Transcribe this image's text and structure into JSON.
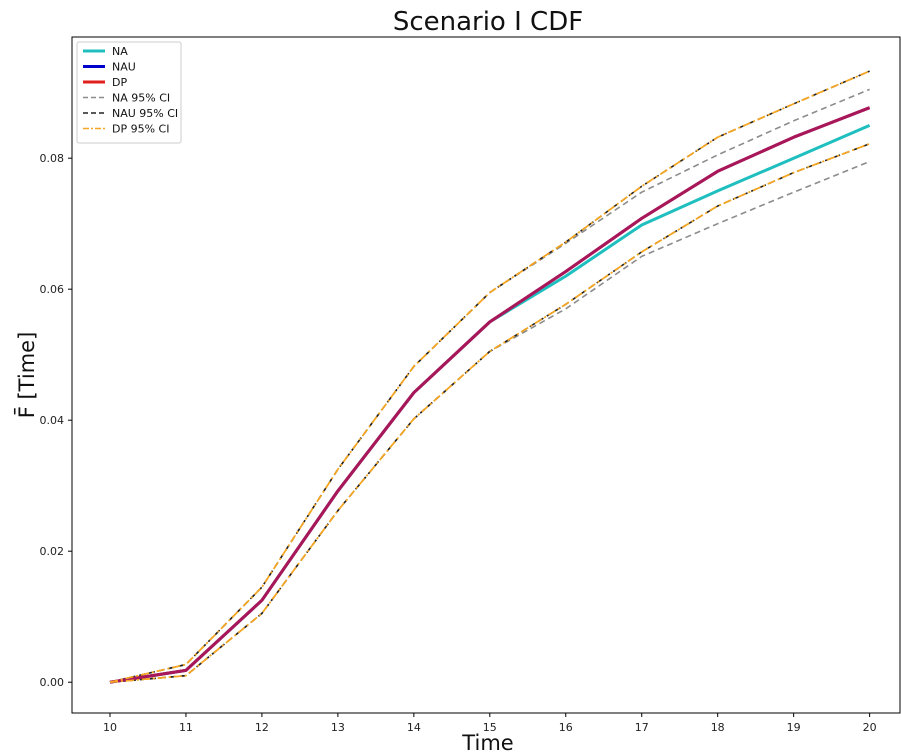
{
  "chart_data": {
    "type": "line",
    "title": "Scenario I CDF",
    "xlabel": "Time",
    "ylabel": "F̄ [Time]",
    "x": [
      10,
      11,
      12,
      13,
      14,
      15,
      16,
      17,
      18,
      19,
      20
    ],
    "xlim": [
      9.5,
      20.4
    ],
    "ylim": [
      -0.0047,
      0.0985
    ],
    "xticks": [
      10,
      11,
      12,
      13,
      14,
      15,
      16,
      17,
      18,
      19,
      20
    ],
    "yticks": [
      0.0,
      0.02,
      0.04,
      0.06,
      0.08
    ],
    "ytick_labels": [
      "0.00",
      "0.02",
      "0.04",
      "0.06",
      "0.08"
    ],
    "grid": false,
    "legend_position": "top-left",
    "series": [
      {
        "name": "NA",
        "color": "#1fbfbf",
        "style": "solid",
        "values": [
          0.0,
          0.0018,
          0.0125,
          0.0292,
          0.0442,
          0.055,
          0.062,
          0.0698,
          0.075,
          0.08,
          0.085
        ]
      },
      {
        "name": "NAU",
        "color": "#0000cc",
        "style": "solid",
        "values": [
          0.0,
          0.0018,
          0.0125,
          0.0292,
          0.0442,
          0.055,
          0.0627,
          0.0708,
          0.078,
          0.0832,
          0.0877
        ]
      },
      {
        "name": "DP",
        "color": "#e0201c",
        "style": "solid",
        "values": [
          0.0,
          0.0018,
          0.0125,
          0.0292,
          0.0442,
          0.055,
          0.0627,
          0.0708,
          0.078,
          0.0832,
          0.0877
        ]
      },
      {
        "name": "NA 95% CI",
        "color": "#8c8c8c",
        "style": "dashed",
        "values": [
          0.0,
          0.001,
          0.0105,
          0.0262,
          0.0402,
          0.0505,
          0.057,
          0.065,
          0.07,
          0.0748,
          0.0795
        ]
      },
      {
        "name": "NA 95% CI",
        "color": "#8c8c8c",
        "style": "dashed",
        "values": [
          0.0,
          0.0027,
          0.0145,
          0.0325,
          0.0482,
          0.0595,
          0.067,
          0.0748,
          0.0805,
          0.0857,
          0.0905
        ]
      },
      {
        "name": "NAU 95% CI",
        "color": "#222222",
        "style": "dashed",
        "values": [
          0.0,
          0.001,
          0.0105,
          0.0262,
          0.0402,
          0.0505,
          0.0577,
          0.0657,
          0.0727,
          0.0778,
          0.0822
        ]
      },
      {
        "name": "NAU 95% CI",
        "color": "#222222",
        "style": "dashed",
        "values": [
          0.0,
          0.0027,
          0.0145,
          0.0325,
          0.0482,
          0.0595,
          0.0672,
          0.0757,
          0.0832,
          0.0883,
          0.0933
        ]
      },
      {
        "name": "DP 95% CI",
        "color": "#f5a623",
        "style": "dashdot",
        "values": [
          0.0,
          0.001,
          0.0105,
          0.0262,
          0.0402,
          0.0505,
          0.0577,
          0.0657,
          0.0727,
          0.0778,
          0.0822
        ]
      },
      {
        "name": "DP 95% CI",
        "color": "#f5a623",
        "style": "dashdot",
        "values": [
          0.0,
          0.0027,
          0.0145,
          0.0325,
          0.0482,
          0.0595,
          0.0672,
          0.0757,
          0.0832,
          0.0883,
          0.0933
        ]
      }
    ],
    "overlap_color": "#a8175a",
    "legend": [
      {
        "label": "NA",
        "color": "#1fbfbf",
        "style": "solid"
      },
      {
        "label": "NAU",
        "color": "#0000cc",
        "style": "solid"
      },
      {
        "label": "DP",
        "color": "#e0201c",
        "style": "solid"
      },
      {
        "label": "NA 95% CI",
        "color": "#8c8c8c",
        "style": "dashed"
      },
      {
        "label": "NAU 95% CI",
        "color": "#222222",
        "style": "dashed"
      },
      {
        "label": "DP 95% CI",
        "color": "#f5a623",
        "style": "dashdot"
      }
    ]
  }
}
